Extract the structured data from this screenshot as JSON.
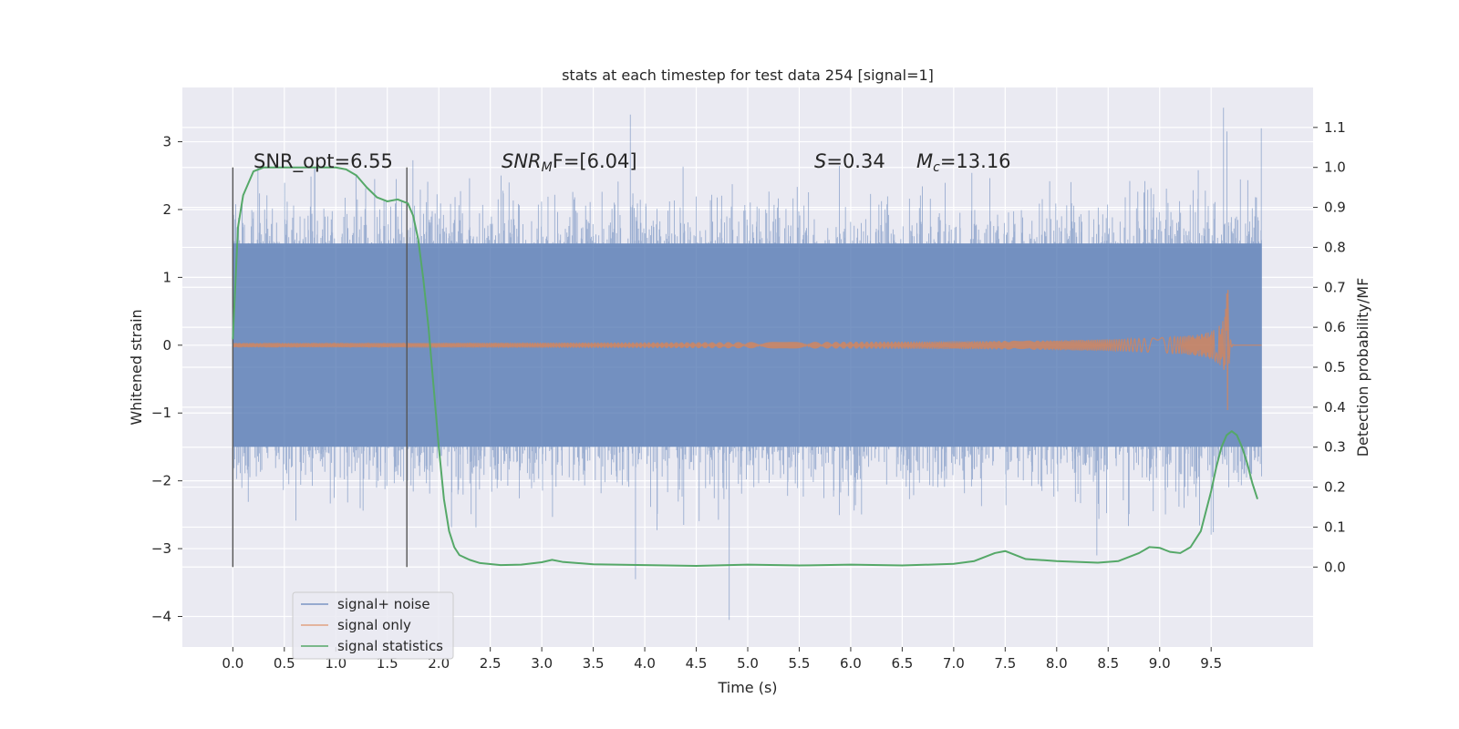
{
  "chart_data": {
    "type": "line",
    "title": "stats at each timestep for test data 254 [signal=1]",
    "xlabel": "Time (s)",
    "ylabel": "Whitened strain",
    "y2label": "Detection probability/MF",
    "xlim": [
      -0.49,
      10.49
    ],
    "ylim": [
      -4.45,
      3.8
    ],
    "y2lim": [
      -0.2,
      1.2
    ],
    "x_ticks": [
      0.0,
      0.5,
      1.0,
      1.5,
      2.0,
      2.5,
      3.0,
      3.5,
      4.0,
      4.5,
      5.0,
      5.5,
      6.0,
      6.5,
      7.0,
      7.5,
      8.0,
      8.5,
      9.0,
      9.5
    ],
    "x_tick_labels": [
      "0.0",
      "0.5",
      "1.0",
      "1.5",
      "2.0",
      "2.5",
      "3.0",
      "3.5",
      "4.0",
      "4.5",
      "5.0",
      "5.5",
      "6.0",
      "6.5",
      "7.0",
      "7.5",
      "8.0",
      "8.5",
      "9.0",
      "9.5"
    ],
    "y_ticks": [
      3,
      2,
      1,
      0,
      -1,
      -2,
      -3,
      -4
    ],
    "y_tick_labels": [
      "3",
      "2",
      "1",
      "0",
      "−1",
      "−2",
      "−3",
      "−4"
    ],
    "y2_ticks": [
      1.1,
      1.0,
      0.9,
      0.8,
      0.7,
      0.6,
      0.5,
      0.4,
      0.3,
      0.2,
      0.1,
      0.0
    ],
    "y2_tick_labels": [
      "1.1",
      "1.0",
      "0.9",
      "0.8",
      "0.7",
      "0.6",
      "0.5",
      "0.4",
      "0.3",
      "0.2",
      "0.1",
      "0.0"
    ],
    "grid": true,
    "legend_position": "lower-left",
    "annotations": {
      "snr_opt": "SNR_opt=6.55",
      "snr_mf_sym": "SNR",
      "snr_mf_sub": "M",
      "snr_mf_rest": "F=[6.04]",
      "s_sym": "S",
      "s_val": "=0.34",
      "mc_sym": "M",
      "mc_sub": "c",
      "mc_val": "=13.16"
    },
    "vertical_markers": [
      0.0,
      1.69
    ],
    "series": [
      {
        "name": "signal+ noise",
        "color": "#4c72b0",
        "kind": "noise",
        "x_range": [
          0.0,
          9.99
        ],
        "core_amplitude": 1.5,
        "notable_extremes": [
          [
            3.86,
            3.4
          ],
          [
            9.62,
            3.5
          ],
          [
            4.82,
            -4.05
          ],
          [
            3.91,
            -3.45
          ],
          [
            8.39,
            -3.1
          ]
        ]
      },
      {
        "name": "signal only",
        "color": "#dd8452",
        "kind": "chirp",
        "x_range": [
          0.0,
          9.99
        ],
        "merger_time": 9.66,
        "peak_amplitude": 1.1
      },
      {
        "name": "signal statistics",
        "color": "#55a868",
        "axis": "y2",
        "x": [
          0.0,
          0.05,
          0.1,
          0.15,
          0.2,
          0.3,
          0.5,
          0.8,
          1.0,
          1.1,
          1.2,
          1.3,
          1.4,
          1.5,
          1.6,
          1.7,
          1.75,
          1.8,
          1.85,
          1.9,
          1.95,
          2.0,
          2.05,
          2.1,
          2.15,
          2.2,
          2.3,
          2.4,
          2.6,
          2.8,
          3.0,
          3.1,
          3.2,
          3.5,
          4.0,
          4.5,
          5.0,
          5.5,
          6.0,
          6.5,
          7.0,
          7.2,
          7.4,
          7.5,
          7.7,
          8.0,
          8.4,
          8.6,
          8.8,
          8.9,
          9.0,
          9.1,
          9.2,
          9.3,
          9.4,
          9.45,
          9.5,
          9.55,
          9.6,
          9.65,
          9.7,
          9.75,
          9.8,
          9.85,
          9.9,
          9.95
        ],
        "y": [
          0.57,
          0.85,
          0.93,
          0.96,
          0.99,
          1.0,
          1.0,
          1.0,
          1.0,
          0.995,
          0.98,
          0.95,
          0.925,
          0.915,
          0.92,
          0.91,
          0.88,
          0.82,
          0.72,
          0.6,
          0.45,
          0.3,
          0.17,
          0.09,
          0.05,
          0.03,
          0.018,
          0.01,
          0.005,
          0.006,
          0.012,
          0.018,
          0.013,
          0.007,
          0.005,
          0.003,
          0.006,
          0.004,
          0.006,
          0.004,
          0.008,
          0.015,
          0.035,
          0.04,
          0.02,
          0.015,
          0.011,
          0.015,
          0.035,
          0.05,
          0.048,
          0.038,
          0.035,
          0.05,
          0.09,
          0.14,
          0.19,
          0.25,
          0.3,
          0.33,
          0.34,
          0.33,
          0.3,
          0.26,
          0.21,
          0.17
        ]
      }
    ]
  }
}
